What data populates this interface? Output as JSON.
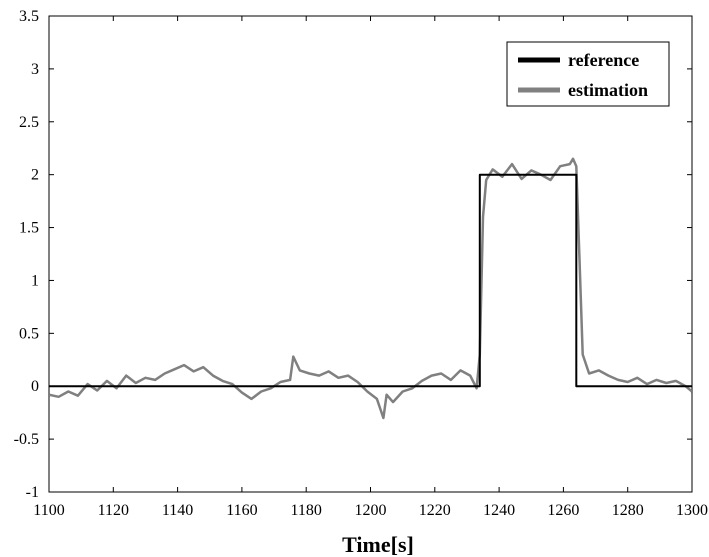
{
  "chart_data": {
    "type": "line",
    "title": "",
    "xlabel": "Time[s]",
    "ylabel": "",
    "xlim": [
      1100,
      1300
    ],
    "ylim": [
      -1,
      3.5
    ],
    "xticks": [
      1100,
      1120,
      1140,
      1160,
      1180,
      1200,
      1220,
      1240,
      1260,
      1280,
      1300
    ],
    "yticks": [
      -1,
      -0.5,
      0,
      0.5,
      1,
      1.5,
      2,
      2.5,
      3,
      3.5
    ],
    "xtick_labels": [
      "1100",
      "1120",
      "1140",
      "1160",
      "1180",
      "1200",
      "1220",
      "1240",
      "1260",
      "1280",
      "1300"
    ],
    "ytick_labels": [
      "-1",
      "-0.5",
      "0",
      "0.5",
      "1",
      "1.5",
      "2",
      "2.5",
      "3",
      "3.5"
    ],
    "grid": false,
    "legend_position": "top-right",
    "series": [
      {
        "name": "reference",
        "color": "#000000",
        "x": [
          1100,
          1234,
          1234,
          1264,
          1264,
          1300
        ],
        "y": [
          0,
          0,
          2,
          2,
          0,
          0
        ]
      },
      {
        "name": "estimation",
        "color": "#808080",
        "x": [
          1100,
          1103,
          1106,
          1109,
          1112,
          1115,
          1118,
          1121,
          1124,
          1127,
          1130,
          1133,
          1136,
          1139,
          1142,
          1145,
          1148,
          1151,
          1154,
          1157,
          1160,
          1163,
          1166,
          1169,
          1172,
          1175,
          1176,
          1178,
          1181,
          1184,
          1187,
          1190,
          1193,
          1196,
          1199,
          1202,
          1204,
          1205,
          1207,
          1210,
          1213,
          1216,
          1219,
          1222,
          1225,
          1228,
          1231,
          1233,
          1234,
          1235,
          1236,
          1238,
          1241,
          1244,
          1247,
          1250,
          1253,
          1256,
          1259,
          1262,
          1263,
          1264,
          1265,
          1266,
          1268,
          1271,
          1274,
          1277,
          1280,
          1283,
          1286,
          1289,
          1292,
          1295,
          1298,
          1300
        ],
        "y": [
          -0.08,
          -0.1,
          -0.05,
          -0.09,
          0.02,
          -0.04,
          0.05,
          -0.02,
          0.1,
          0.03,
          0.08,
          0.06,
          0.12,
          0.16,
          0.2,
          0.14,
          0.18,
          0.1,
          0.05,
          0.02,
          -0.06,
          -0.12,
          -0.05,
          -0.02,
          0.04,
          0.06,
          0.28,
          0.15,
          0.12,
          0.1,
          0.14,
          0.08,
          0.1,
          0.04,
          -0.05,
          -0.12,
          -0.3,
          -0.08,
          -0.15,
          -0.05,
          -0.02,
          0.05,
          0.1,
          0.12,
          0.06,
          0.15,
          0.1,
          -0.02,
          0.3,
          1.6,
          1.95,
          2.05,
          1.98,
          2.1,
          1.96,
          2.04,
          2.0,
          1.95,
          2.08,
          2.1,
          2.15,
          2.08,
          1.2,
          0.3,
          0.12,
          0.15,
          0.1,
          0.06,
          0.04,
          0.08,
          0.02,
          0.06,
          0.03,
          0.05,
          0.0,
          -0.05
        ]
      }
    ]
  }
}
